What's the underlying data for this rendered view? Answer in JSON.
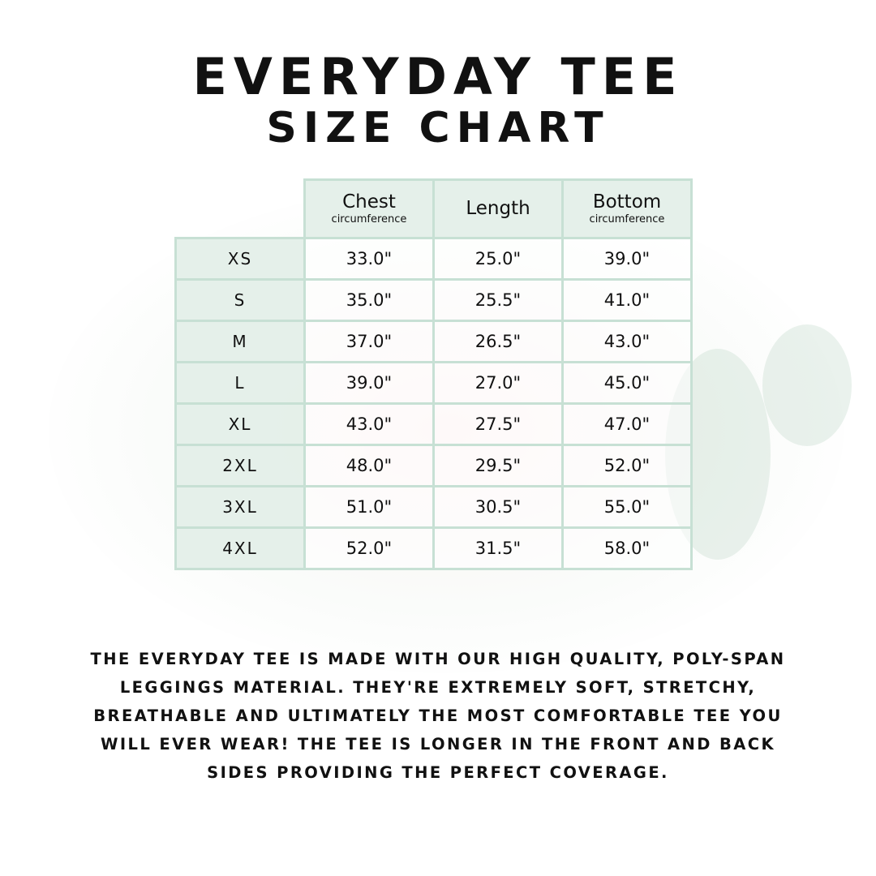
{
  "title_line1": "Everyday Tee",
  "title_line2": "Size Chart",
  "colors": {
    "header_bg": "#e2eee8",
    "border": "#c7e0d4"
  },
  "table": {
    "columns": [
      {
        "main": "Chest",
        "sub": "circumference"
      },
      {
        "main": "Length",
        "sub": ""
      },
      {
        "main": "Bottom",
        "sub": "circumference"
      }
    ],
    "rows": [
      {
        "size": "XS",
        "values": [
          "33.0\"",
          "25.0\"",
          "39.0\""
        ]
      },
      {
        "size": "S",
        "values": [
          "35.0\"",
          "25.5\"",
          "41.0\""
        ]
      },
      {
        "size": "M",
        "values": [
          "37.0\"",
          "26.5\"",
          "43.0\""
        ]
      },
      {
        "size": "L",
        "values": [
          "39.0\"",
          "27.0\"",
          "45.0\""
        ]
      },
      {
        "size": "XL",
        "values": [
          "43.0\"",
          "27.5\"",
          "47.0\""
        ]
      },
      {
        "size": "2XL",
        "values": [
          "48.0\"",
          "29.5\"",
          "52.0\""
        ]
      },
      {
        "size": "3XL",
        "values": [
          "51.0\"",
          "30.5\"",
          "55.0\""
        ]
      },
      {
        "size": "4XL",
        "values": [
          "52.0\"",
          "31.5\"",
          "58.0\""
        ]
      }
    ]
  },
  "description": "The Everyday Tee is made with our high quality, poly-span leggings material. They're extremely soft, stretchy, breathable and ultimately the most comfortable tee you will ever wear! The tee is longer in the front and back sides providing the perfect coverage."
}
